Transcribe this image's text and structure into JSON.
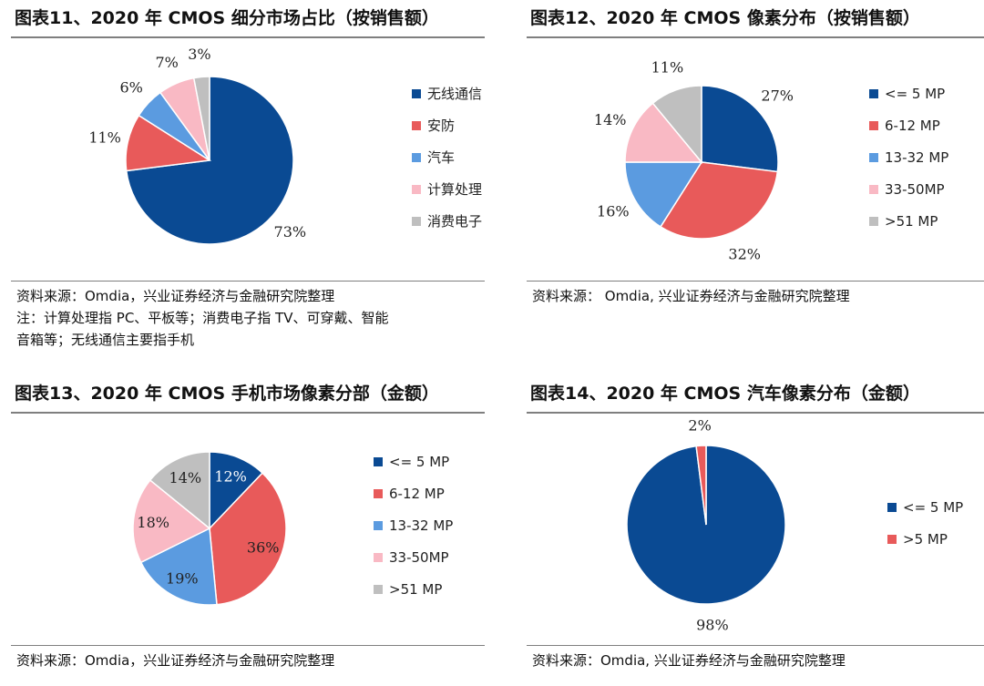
{
  "panels": [
    {
      "title": "图表11、2020 年 CMOS 细分市场占比（按销售额）",
      "source": "资料来源：Omdia，兴业证券经济与金融研究院整理",
      "notes": [
        "注：计算处理指 PC、平板等；消费电子指 TV、可穿戴、智能",
        "音箱等；无线通信主要指手机"
      ]
    },
    {
      "title": "图表12、2020 年 CMOS 像素分布（按销售额）",
      "source": "资料来源： Omdia, 兴业证券经济与金融研究院整理",
      "notes": []
    },
    {
      "title": "图表13、2020 年 CMOS 手机市场像素分部（金额）",
      "source": "资料来源：Omdia，兴业证券经济与金融研究院整理",
      "notes": []
    },
    {
      "title": "图表14、2020 年 CMOS 汽车像素分布（金额）",
      "source": "资料来源：Omdia, 兴业证券经济与金融研究院整理",
      "notes": []
    }
  ],
  "chart_data": [
    {
      "type": "pie",
      "title": "2020 年 CMOS 细分市场占比（按销售额）",
      "categories": [
        "无线通信",
        "安防",
        "汽车",
        "计算处理",
        "消费电子"
      ],
      "values": [
        73,
        11,
        6,
        7,
        3
      ],
      "labels": [
        "73%",
        "11%",
        "6%",
        "7%",
        "3%"
      ],
      "colors": [
        "#0a4a93",
        "#e85a5a",
        "#5b9be0",
        "#f9b9c4",
        "#bfbfbf"
      ],
      "legend": "right"
    },
    {
      "type": "pie",
      "title": "2020 年 CMOS 像素分布（按销售额）",
      "categories": [
        "<= 5 MP",
        "6-12 MP",
        "13-32 MP",
        "33-50MP",
        ">51 MP"
      ],
      "values": [
        27,
        32,
        16,
        14,
        11
      ],
      "labels": [
        "27%",
        "32%",
        "16%",
        "14%",
        "11%"
      ],
      "colors": [
        "#0a4a93",
        "#e85a5a",
        "#5b9be0",
        "#f9b9c4",
        "#bfbfbf"
      ],
      "legend": "right"
    },
    {
      "type": "pie",
      "title": "2020 年 CMOS 手机市场像素分部（金额）",
      "categories": [
        "<= 5 MP",
        "6-12 MP",
        "13-32 MP",
        "33-50MP",
        ">51 MP"
      ],
      "values": [
        12,
        36,
        19,
        18,
        14
      ],
      "labels": [
        "12%",
        "36%",
        "19%",
        "18%",
        "14%"
      ],
      "colors": [
        "#0a4a93",
        "#e85a5a",
        "#5b9be0",
        "#f9b9c4",
        "#bfbfbf"
      ],
      "legend": "right"
    },
    {
      "type": "pie",
      "title": "2020 年 CMOS 汽车像素分布（金额）",
      "categories": [
        "<= 5 MP",
        ">5 MP"
      ],
      "values": [
        98,
        2
      ],
      "labels": [
        "98%",
        "2%"
      ],
      "colors": [
        "#0a4a93",
        "#e85a5a"
      ],
      "legend": "right"
    }
  ]
}
